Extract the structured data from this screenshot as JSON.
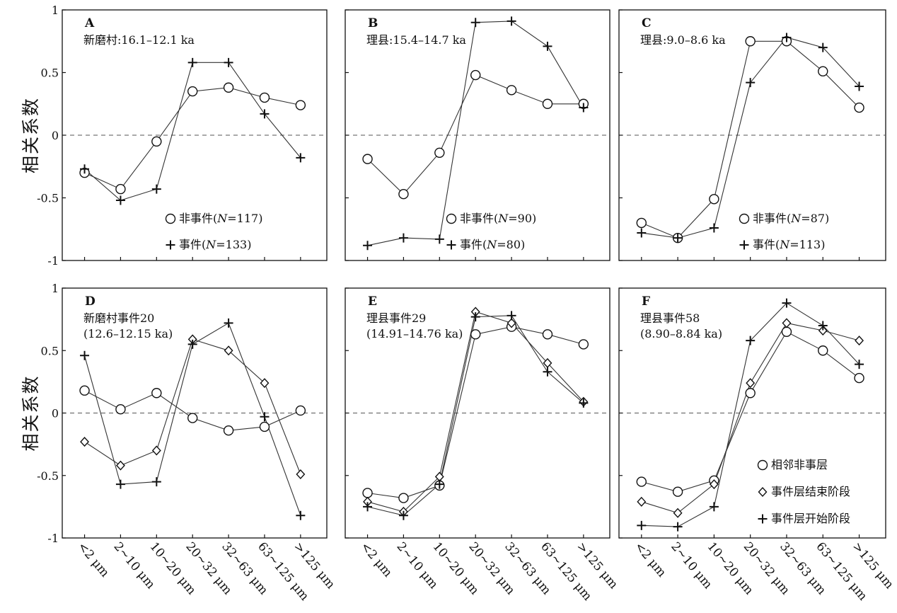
{
  "figure": {
    "y_label": "相关系数",
    "y_ticks": [
      "1",
      "0.5",
      "0",
      "-0.5",
      "-1"
    ],
    "x_ticks": [
      "<2 μm",
      "2~10 μm",
      "10~20 μm",
      "20~32 μm",
      "32~63 μm",
      "63~125 μm",
      ">125 μm"
    ]
  },
  "chart_data": [
    {
      "type": "line",
      "panel": "A",
      "title": [
        "新磨村:16.1–12.1 ka"
      ],
      "categories": [
        "<2 μm",
        "2~10 μm",
        "10~20 μm",
        "20~32 μm",
        "32~63 μm",
        "63~125 μm",
        ">125 μm"
      ],
      "ylim": [
        -1,
        1
      ],
      "reference_line": 0,
      "legend_position": "bottom-right",
      "series": [
        {
          "name": "非事件(N=117)",
          "marker": "circle",
          "values": [
            -0.3,
            -0.43,
            -0.05,
            0.35,
            0.38,
            0.3,
            0.24
          ]
        },
        {
          "name": "事件(N=133)",
          "marker": "plus",
          "values": [
            -0.27,
            -0.52,
            -0.43,
            0.58,
            0.58,
            0.17,
            -0.18
          ]
        }
      ]
    },
    {
      "type": "line",
      "panel": "B",
      "title": [
        "理县:15.4–14.7 ka"
      ],
      "categories": [
        "<2 μm",
        "2~10 μm",
        "10~20 μm",
        "20~32 μm",
        "32~63 μm",
        "63~125 μm",
        ">125 μm"
      ],
      "ylim": [
        -1,
        1
      ],
      "reference_line": 0,
      "legend_position": "bottom-right",
      "series": [
        {
          "name": "非事件(N=90)",
          "marker": "circle",
          "values": [
            -0.19,
            -0.47,
            -0.14,
            0.48,
            0.36,
            0.25,
            0.25
          ]
        },
        {
          "name": "事件(N=80)",
          "marker": "plus",
          "values": [
            -0.88,
            -0.82,
            -0.83,
            0.9,
            0.91,
            0.71,
            0.22
          ]
        }
      ]
    },
    {
      "type": "line",
      "panel": "C",
      "title": [
        "理县:9.0–8.6 ka"
      ],
      "categories": [
        "<2 μm",
        "2~10 μm",
        "10~20 μm",
        "20~32 μm",
        "32~63 μm",
        "63~125 μm",
        ">125 μm"
      ],
      "ylim": [
        -1,
        1
      ],
      "reference_line": 0,
      "legend_position": "bottom-right",
      "series": [
        {
          "name": "非事件(N=87)",
          "marker": "circle",
          "values": [
            -0.7,
            -0.82,
            -0.51,
            0.75,
            0.75,
            0.51,
            0.22
          ]
        },
        {
          "name": "事件(N=113)",
          "marker": "plus",
          "values": [
            -0.78,
            -0.82,
            -0.74,
            0.42,
            0.78,
            0.7,
            0.39
          ]
        }
      ]
    },
    {
      "type": "line",
      "panel": "D",
      "title": [
        "新磨村事件20",
        "(12.6–12.15 ka)"
      ],
      "categories": [
        "<2 μm",
        "2~10 μm",
        "10~20 μm",
        "20~32 μm",
        "32~63 μm",
        "63~125 μm",
        ">125 μm"
      ],
      "ylim": [
        -1,
        1
      ],
      "reference_line": 0,
      "series": [
        {
          "name": "相邻非事层",
          "marker": "circle",
          "values": [
            0.18,
            0.03,
            0.16,
            -0.04,
            -0.14,
            -0.11,
            0.02
          ]
        },
        {
          "name": "事件层结束阶段",
          "marker": "diamond",
          "values": [
            -0.23,
            -0.42,
            -0.3,
            0.59,
            0.5,
            0.24,
            -0.49
          ]
        },
        {
          "name": "事件层开始阶段",
          "marker": "plus",
          "values": [
            0.46,
            -0.57,
            -0.55,
            0.55,
            0.72,
            -0.03,
            -0.82
          ]
        }
      ]
    },
    {
      "type": "line",
      "panel": "E",
      "title": [
        "理县事件29",
        "(14.91–14.76 ka)"
      ],
      "categories": [
        "<2 μm",
        "2~10 μm",
        "10~20 μm",
        "20~32 μm",
        "32~63 μm",
        "63~125 μm",
        ">125 μm"
      ],
      "ylim": [
        -1,
        1
      ],
      "reference_line": 0,
      "series": [
        {
          "name": "相邻非事层",
          "marker": "circle",
          "values": [
            -0.64,
            -0.68,
            -0.58,
            0.63,
            0.69,
            0.63,
            0.55
          ]
        },
        {
          "name": "事件层结束阶段",
          "marker": "diamond",
          "values": [
            -0.71,
            -0.79,
            -0.51,
            0.81,
            0.72,
            0.4,
            0.09
          ]
        },
        {
          "name": "事件层开始阶段",
          "marker": "plus",
          "values": [
            -0.75,
            -0.82,
            -0.57,
            0.77,
            0.78,
            0.33,
            0.08
          ]
        }
      ]
    },
    {
      "type": "line",
      "panel": "F",
      "title": [
        "理县事件58",
        "(8.90–8.84 ka)"
      ],
      "categories": [
        "<2 μm",
        "2~10 μm",
        "10~20 μm",
        "20~32 μm",
        "32~63 μm",
        "63~125 μm",
        ">125 μm"
      ],
      "ylim": [
        -1,
        1
      ],
      "reference_line": 0,
      "legend_position": "bottom-right",
      "series": [
        {
          "name": "相邻非事层",
          "marker": "circle",
          "values": [
            -0.55,
            -0.63,
            -0.54,
            0.16,
            0.65,
            0.5,
            0.28
          ]
        },
        {
          "name": "事件层结束阶段",
          "marker": "diamond",
          "values": [
            -0.71,
            -0.8,
            -0.57,
            0.24,
            0.72,
            0.66,
            0.58
          ]
        },
        {
          "name": "事件层开始阶段",
          "marker": "plus",
          "values": [
            -0.9,
            -0.91,
            -0.75,
            0.58,
            0.88,
            0.7,
            0.39
          ]
        }
      ]
    }
  ]
}
